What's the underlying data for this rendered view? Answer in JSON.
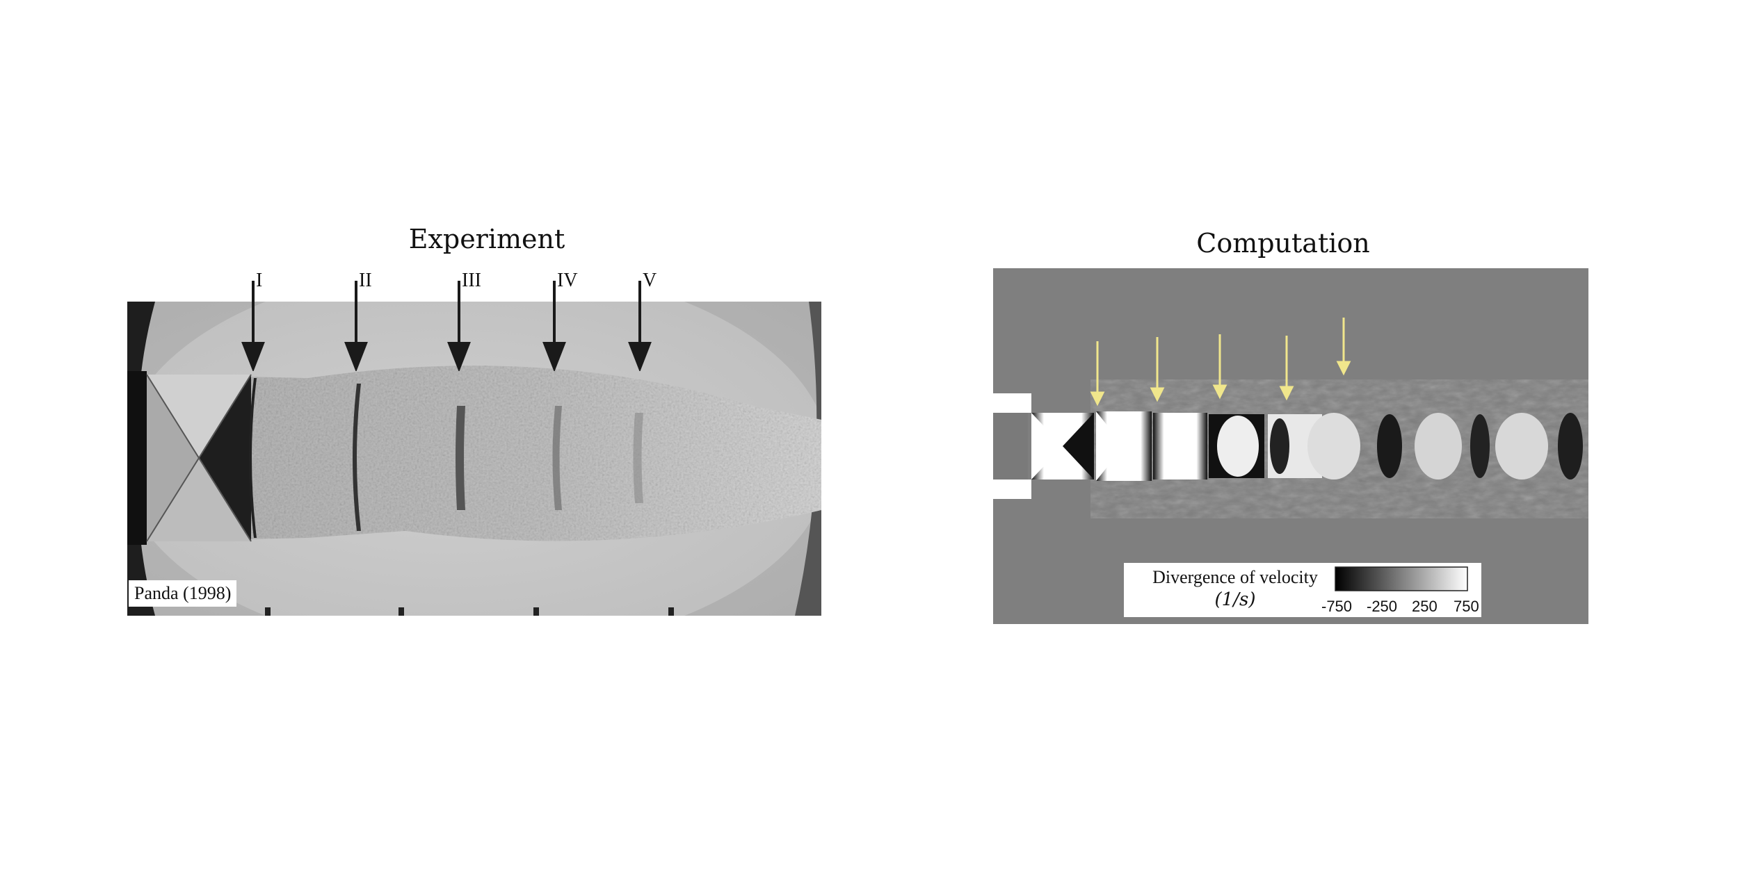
{
  "experiment": {
    "title": "Experiment",
    "markers": [
      "I",
      "II",
      "III",
      "IV",
      "V"
    ],
    "credit": "Panda (1998)"
  },
  "computation": {
    "title": "Computation",
    "legend": {
      "title": "Divergence of velocity",
      "unit": "(1/s)",
      "ticks": [
        "-750",
        "-250",
        "250",
        "750"
      ]
    },
    "arrow_color": "#f0e68c"
  }
}
